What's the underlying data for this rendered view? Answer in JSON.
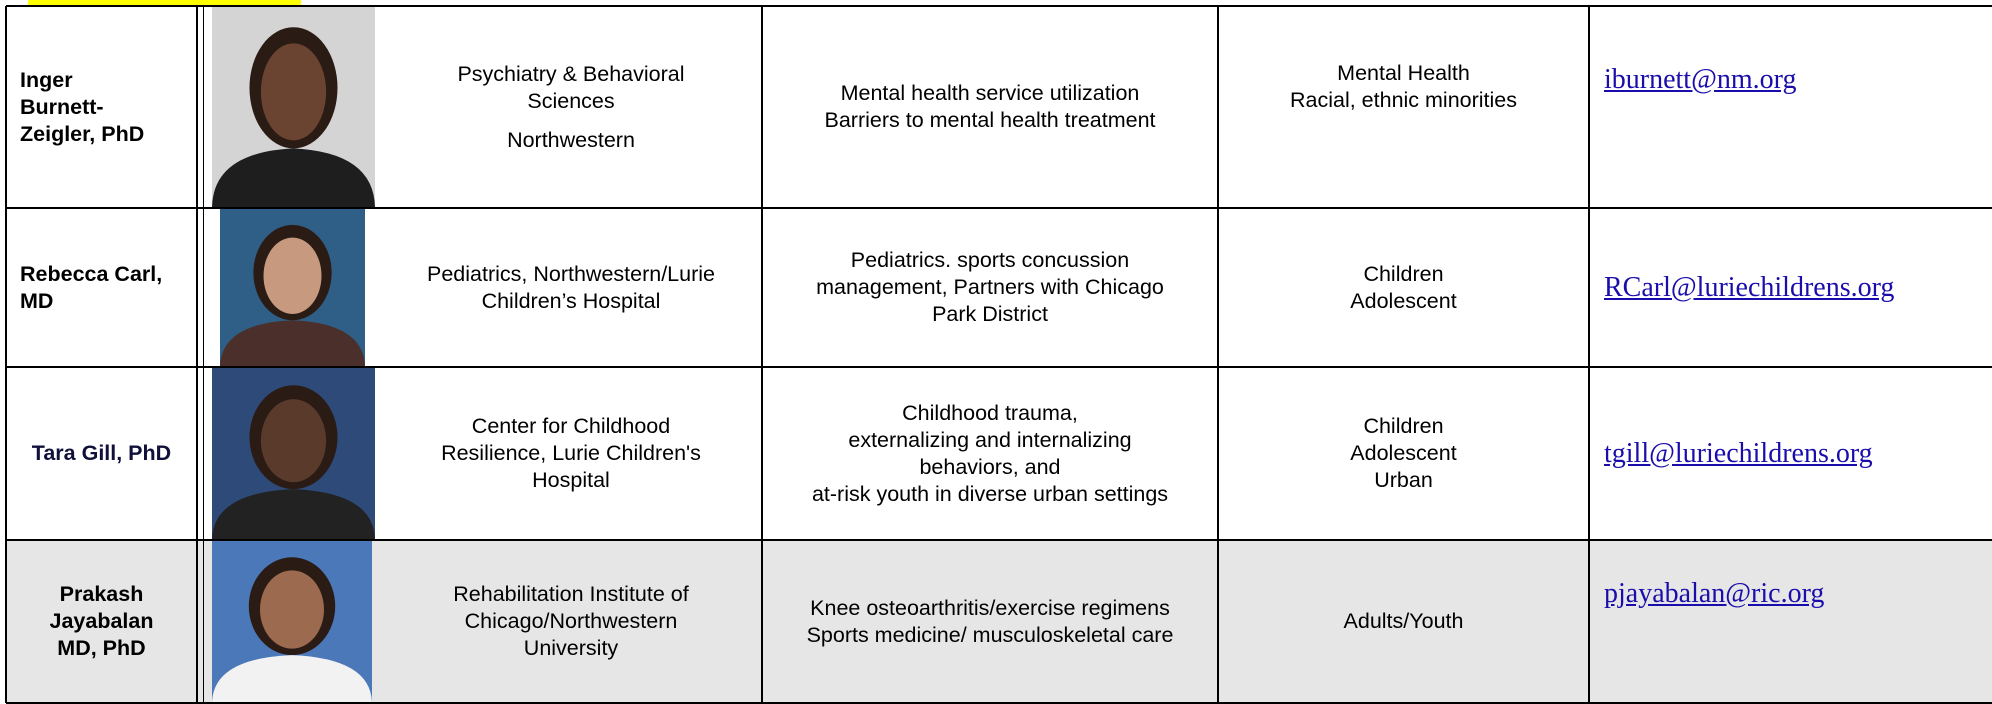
{
  "table": {
    "rows": [
      {
        "name": [
          "Inger",
          "Burnett-",
          "Zeigler, PhD"
        ],
        "department": [
          "Psychiatry & Behavioral",
          "Sciences",
          "Northwestern"
        ],
        "research": [
          "Mental health service utilization",
          "Barriers to mental health treatment"
        ],
        "population": [
          "Mental Health",
          "Racial, ethnic minorities"
        ],
        "email": "iburnett@nm.org"
      },
      {
        "name": [
          "Rebecca Carl,",
          "MD"
        ],
        "department": [
          "Pediatrics, Northwestern/Lurie",
          "Children’s Hospital"
        ],
        "research": [
          "Pediatrics. sports concussion",
          "management, Partners with Chicago",
          "Park District"
        ],
        "population": [
          "Children",
          "Adolescent"
        ],
        "email": "RCarl@luriechildrens.org"
      },
      {
        "name": [
          "Tara Gill, PhD"
        ],
        "department": [
          "Center for Childhood",
          "Resilience, Lurie Children's",
          "Hospital"
        ],
        "research": [
          "Childhood trauma,",
          "externalizing and internalizing",
          "behaviors, and",
          "at-risk youth in diverse urban settings"
        ],
        "population": [
          "Children",
          "Adolescent",
          "Urban"
        ],
        "email": "tgill@luriechildrens.org"
      },
      {
        "name": [
          "Prakash",
          "Jayabalan",
          "MD, PhD"
        ],
        "department": [
          "Rehabilitation Institute of",
          "Chicago/Northwestern",
          "University"
        ],
        "research": [
          "Knee osteoarthritis/exercise regimens",
          "Sports medicine/ musculoskeletal care"
        ],
        "population": [
          "Adults/Youth"
        ],
        "email": "pjayabalan@ric.org"
      }
    ]
  }
}
